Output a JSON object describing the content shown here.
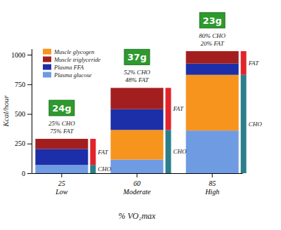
{
  "chart_data": {
    "type": "bar",
    "stacked": true,
    "x_label": "% VO₂max",
    "y_label": "Kcal/hour",
    "categories": [
      "25\nLow",
      "60\nModerate",
      "85\nHigh"
    ],
    "series": [
      {
        "name": "Muscle glycogen",
        "color": "#f7941d",
        "values": [
          0,
          250,
          470
        ]
      },
      {
        "name": "Muscle triglyceride",
        "color": "#a31f1f",
        "values": [
          85,
          180,
          105
        ]
      },
      {
        "name": "Plasma FFA",
        "color": "#1c2fa8",
        "values": [
          135,
          175,
          95
        ]
      },
      {
        "name": "Plasma glucose",
        "color": "#6f9be3",
        "values": [
          70,
          115,
          360
        ]
      }
    ],
    "ylim": [
      0,
      1050
    ],
    "yticks": [
      0,
      250,
      500,
      750,
      1000
    ],
    "grid": false,
    "legend": "upper left",
    "annotations": {
      "badges": [
        "24g",
        "37g",
        "23g"
      ],
      "splits": [
        [
          "25% CHO",
          "75% FAT"
        ],
        [
          "52% CHO",
          "48% FAT"
        ],
        [
          "80% CHO",
          "20% FAT"
        ]
      ],
      "side_labels": [
        [
          "FAT",
          "CHO"
        ],
        [
          "FAT",
          "CHO"
        ],
        [
          "FAT",
          "CHO"
        ]
      ]
    }
  }
}
